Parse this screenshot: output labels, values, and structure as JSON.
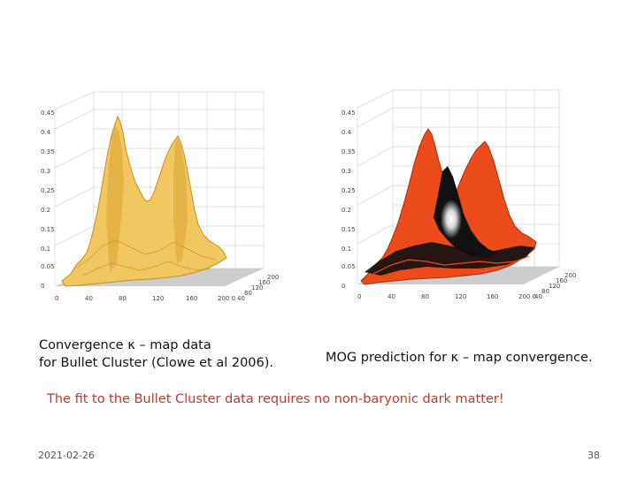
{
  "plots": {
    "left": {
      "z_ticks": [
        "0.45",
        "0.4",
        "0.35",
        "0.3",
        "0.25",
        "0.2",
        "0.15",
        "0.1",
        "0.05",
        "0"
      ],
      "x_ticks": [
        "0",
        "40",
        "80",
        "120",
        "160",
        "200 0"
      ],
      "y_ticks": [
        "200",
        "160",
        "120",
        "80",
        "40"
      ],
      "surface_color": "#f2c660",
      "surface_edge_color": "#c98f1e"
    },
    "right": {
      "z_ticks": [
        "0.45",
        "0.4",
        "0.35",
        "0.3",
        "0.25",
        "0.2",
        "0.15",
        "0.1",
        "0.05",
        "0"
      ],
      "x_ticks": [
        "0",
        "40",
        "80",
        "120",
        "160",
        "200 0"
      ],
      "y_ticks": [
        "200",
        "160",
        "120",
        "80",
        "40"
      ],
      "surface_color": "#ec4b1c",
      "surface_edge_color": "#a92e0c",
      "dark_region_color": "#111111"
    }
  },
  "captions": {
    "left_line1": "Convergence κ – map data",
    "left_line2": "for Bullet  Cluster (Clowe et al 2006).",
    "right": "MOG prediction for κ – map convergence."
  },
  "note": "The fit to the Bullet Cluster data requires no non-baryonic dark matter!",
  "footer": {
    "date": "2021-02-26",
    "page": "38"
  },
  "colors": {
    "note_text": "#c0392b",
    "grid": "#d8d8d8",
    "floor": "#c4c4c4"
  }
}
